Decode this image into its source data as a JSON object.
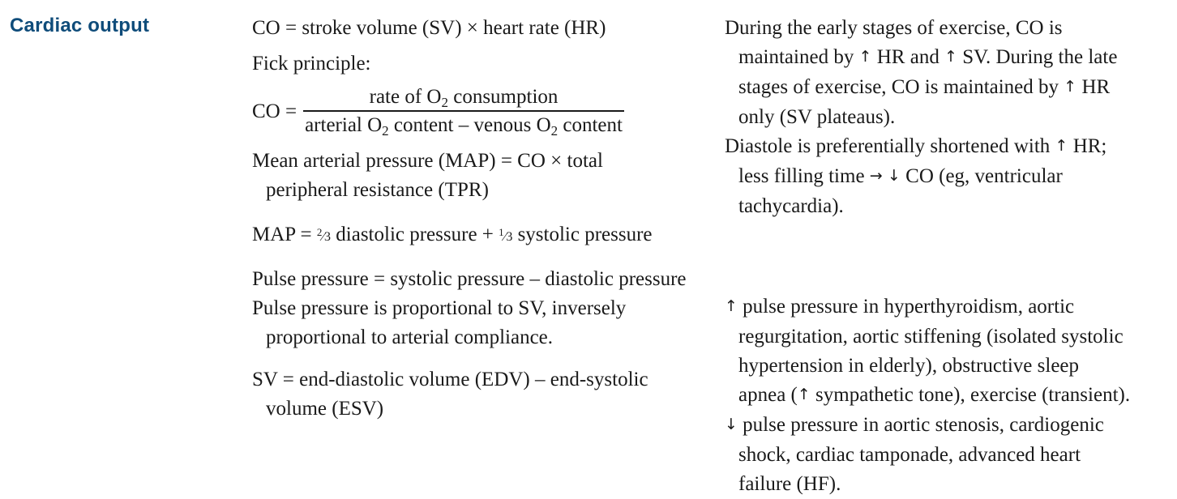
{
  "heading": "Cardiac output",
  "middle": {
    "co_formula": "CO = stroke volume (SV) × heart rate (HR)",
    "fick_label": "Fick principle:",
    "fick": {
      "lhs": "CO =",
      "num_pre": "rate of O",
      "num_sub": "2",
      "num_post": " consumption",
      "den_pre": "arterial O",
      "den_sub1": "2",
      "den_mid": " content – venous O",
      "den_sub2": "2",
      "den_post": " content"
    },
    "map_formula": [
      "Mean arterial pressure (MAP) = CO × total",
      "peripheral resistance (TPR)"
    ],
    "map2": {
      "pre": "MAP = ",
      "frac1_num": "2",
      "frac1_den": "3",
      "mid": " diastolic pressure + ",
      "frac2_num": "1",
      "frac2_den": "3",
      "post": " systolic pressure"
    },
    "pulse_pressure": "Pulse pressure = systolic pressure – diastolic pressure",
    "pulse_prop": [
      "Pulse pressure is proportional to SV, inversely",
      "proportional to arterial compliance."
    ],
    "sv_formula": [
      "SV = end-diastolic volume (EDV) – end-systolic",
      "volume (ESV)"
    ]
  },
  "right": {
    "exercise": {
      "l1": "During the early stages of exercise, CO is",
      "l2a": "maintained by ",
      "l2b": " HR and ",
      "l2c": " SV. During the late",
      "l3": "stages of exercise, CO is maintained by ",
      "l3b": " HR",
      "l4": "only (SV plateaus)."
    },
    "diastole": {
      "l1": "Diastole is preferentially shortened with ",
      "l1b": " HR;",
      "l2a": "less filling time ",
      "l2b": " ",
      "l2c": " CO (eg, ventricular",
      "l3": "tachycardia)."
    },
    "increased_pp": {
      "l1": " pulse pressure in hyperthyroidism, aortic",
      "l2": "regurgitation, aortic stiffening (isolated systolic",
      "l3": "hypertension in elderly), obstructive sleep",
      "l4a": "apnea (",
      "l4b": " sympathetic tone), exercise (transient)."
    },
    "decreased_pp": {
      "l1": " pulse pressure in aortic stenosis, cardiogenic",
      "l2": "shock, cardiac tamponade, advanced heart",
      "l3": "failure (HF)."
    }
  },
  "icons": {
    "up": "↑",
    "down": "↓",
    "right": "→"
  }
}
